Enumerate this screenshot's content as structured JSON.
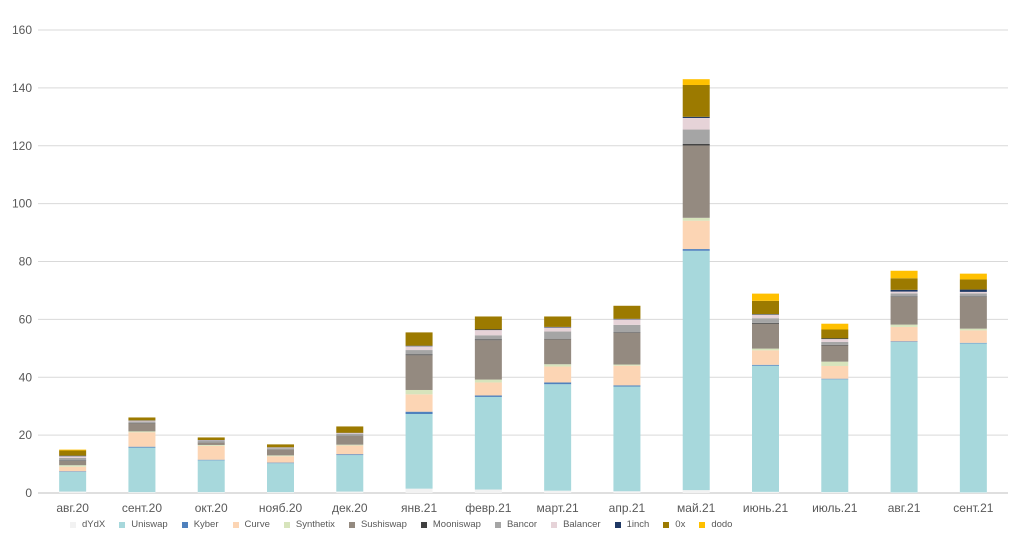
{
  "chart_data": {
    "type": "stacked-bar",
    "categories": [
      "авг.20",
      "сент.20",
      "окт.20",
      "нояб.20",
      "дек.20",
      "янв.21",
      "февр.21",
      "март.21",
      "апр.21",
      "май.21",
      "июнь.21",
      "июль.21",
      "авг.21",
      "сент.21"
    ],
    "ylim": [
      0,
      160
    ],
    "yticks": [
      0,
      20,
      40,
      60,
      80,
      100,
      120,
      140,
      160
    ],
    "grid": true,
    "legend_position": "bottom",
    "series": [
      {
        "name": "dYdX",
        "color": "#f2f2f2",
        "values": [
          0.5,
          0.3,
          0.3,
          0.3,
          0.5,
          1.5,
          1.2,
          0.8,
          0.6,
          1.0,
          0.4,
          0.3,
          0.2,
          0.2
        ]
      },
      {
        "name": "Uniswap",
        "color": "#a7d8dc",
        "values": [
          6.8,
          15.4,
          11.0,
          10.0,
          12.6,
          25.8,
          32.0,
          36.8,
          36.2,
          82.7,
          43.6,
          39.0,
          52.0,
          51.5
        ]
      },
      {
        "name": "Kyber",
        "color": "#4f81bd",
        "values": [
          0.2,
          0.3,
          0.2,
          0.2,
          0.3,
          0.8,
          0.5,
          0.6,
          0.4,
          0.6,
          0.3,
          0.2,
          0.2,
          0.2
        ]
      },
      {
        "name": "Curve",
        "color": "#fcd5b4",
        "values": [
          1.6,
          5.0,
          4.8,
          2.2,
          3.0,
          6.0,
          4.5,
          5.5,
          6.8,
          9.8,
          5.0,
          4.4,
          5.0,
          4.3
        ]
      },
      {
        "name": "Synthetix",
        "color": "#d7e4bc",
        "values": [
          0.5,
          0.3,
          0.3,
          0.3,
          0.3,
          1.5,
          1.0,
          0.8,
          0.4,
          1.0,
          0.6,
          1.5,
          0.8,
          0.6
        ]
      },
      {
        "name": "Sushiswap",
        "color": "#948a80",
        "values": [
          1.5,
          2.8,
          0.8,
          2.0,
          3.0,
          12.0,
          13.6,
          8.6,
          11.0,
          25.0,
          8.6,
          5.6,
          9.6,
          11.0
        ]
      },
      {
        "name": "Mooniswap",
        "color": "#404040",
        "values": [
          0.2,
          0.1,
          0.1,
          0.1,
          0.1,
          0.3,
          0.3,
          0.2,
          0.2,
          0.5,
          0.3,
          0.2,
          0.2,
          0.2
        ]
      },
      {
        "name": "Bancor",
        "color": "#a5a5a5",
        "values": [
          0.8,
          0.5,
          0.5,
          0.4,
          0.6,
          1.5,
          1.4,
          2.5,
          2.5,
          5.0,
          1.6,
          1.0,
          1.0,
          1.0
        ]
      },
      {
        "name": "Balancer",
        "color": "#e6d3d8",
        "values": [
          0.6,
          0.3,
          0.2,
          0.2,
          0.3,
          1.3,
          1.8,
          1.4,
          1.9,
          4.0,
          1.2,
          1.0,
          0.6,
          0.5
        ]
      },
      {
        "name": "1inch",
        "color": "#1f3864",
        "values": [
          0.2,
          0.1,
          0.1,
          0.1,
          0.1,
          0.2,
          0.2,
          0.2,
          0.2,
          0.4,
          0.2,
          0.2,
          0.6,
          0.8
        ]
      },
      {
        "name": "0x",
        "color": "#9c7a00",
        "values": [
          1.8,
          1.0,
          0.9,
          1.0,
          2.2,
          4.6,
          4.5,
          3.6,
          4.5,
          11.0,
          4.6,
          3.1,
          4.0,
          3.5
        ]
      },
      {
        "name": "dodo",
        "color": "#ffc000",
        "values": [
          0.3,
          0.0,
          0.0,
          0.0,
          0.0,
          0.0,
          0.0,
          0.0,
          0.0,
          2.0,
          2.5,
          2.0,
          2.6,
          2.0
        ]
      }
    ]
  }
}
